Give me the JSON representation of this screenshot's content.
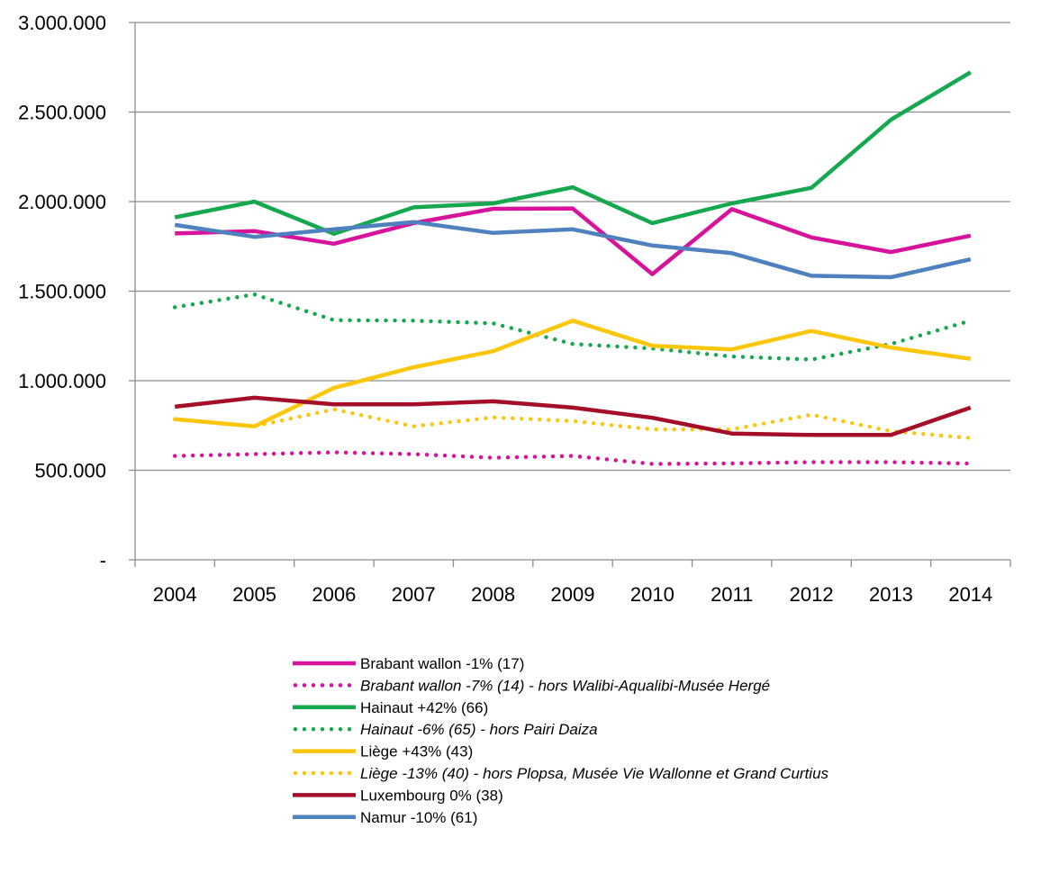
{
  "chart_data": {
    "type": "line",
    "title": "",
    "xlabel": "",
    "ylabel": "",
    "categories": [
      "2004",
      "2005",
      "2006",
      "2007",
      "2008",
      "2009",
      "2010",
      "2011",
      "2012",
      "2013",
      "2014"
    ],
    "ylim": [
      0,
      3000000
    ],
    "y_ticks": [
      0,
      500000,
      1000000,
      1500000,
      2000000,
      2500000,
      3000000
    ],
    "y_tick_labels": [
      "-",
      "500.000",
      "1.000.000",
      "1.500.000",
      "2.000.000",
      "2.500.000",
      "3.000.000"
    ],
    "grid": true,
    "legend_position": "bottom",
    "series": [
      {
        "name": "Brabant wallon -1% (17)",
        "style": "solid",
        "italic": false,
        "color": "#d6139a",
        "values": [
          1822000,
          1835000,
          1765000,
          1880000,
          1960000,
          1962000,
          1595000,
          1958000,
          1800000,
          1718000,
          1810000
        ]
      },
      {
        "name": "Brabant wallon -7% (14) - hors Walibi-Aqualibi-Musée Hergé",
        "style": "dotted",
        "italic": true,
        "color": "#d6139a",
        "values": [
          580000,
          590000,
          600000,
          590000,
          570000,
          580000,
          535000,
          538000,
          545000,
          545000,
          537000
        ]
      },
      {
        "name": "Hainaut +42% (66)",
        "style": "solid",
        "italic": false,
        "color": "#16a84e",
        "values": [
          1912000,
          2000000,
          1820000,
          1968000,
          1990000,
          2080000,
          1880000,
          1990000,
          2077000,
          2458000,
          2722000
        ]
      },
      {
        "name": "Hainaut -6% (65) - hors Pairi Daiza",
        "style": "dotted",
        "italic": true,
        "color": "#16a84e",
        "values": [
          1410000,
          1482000,
          1338000,
          1335000,
          1320000,
          1205000,
          1180000,
          1135000,
          1118000,
          1205000,
          1335000
        ]
      },
      {
        "name": "Liège +43% (43)",
        "style": "solid",
        "italic": false,
        "color": "#fcc60a",
        "values": [
          785000,
          745000,
          960000,
          1075000,
          1165000,
          1335000,
          1195000,
          1175000,
          1278000,
          1185000,
          1122000
        ]
      },
      {
        "name": "Liège -13% (40) - hors Plopsa, Musée Vie Wallonne et Grand Curtius",
        "style": "dotted",
        "italic": true,
        "color": "#fcc60a",
        "values": [
          785000,
          745000,
          840000,
          745000,
          795000,
          775000,
          728000,
          728000,
          810000,
          718000,
          680000
        ]
      },
      {
        "name": "Luxembourg 0% (38)",
        "style": "solid",
        "italic": false,
        "color": "#a50e28",
        "values": [
          855000,
          905000,
          868000,
          868000,
          885000,
          850000,
          793000,
          705000,
          697000,
          697000,
          850000
        ]
      },
      {
        "name": "Namur -10% (61)",
        "style": "solid",
        "italic": false,
        "color": "#4e81bd",
        "values": [
          1870000,
          1803000,
          1845000,
          1886000,
          1825000,
          1845000,
          1755000,
          1712000,
          1586000,
          1578000,
          1678000
        ]
      }
    ]
  }
}
